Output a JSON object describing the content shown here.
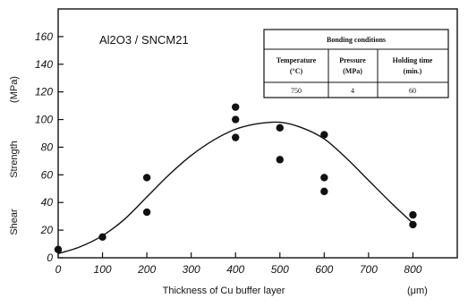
{
  "chart_data": {
    "type": "scatter",
    "xlabel": "Thickness of Cu buffer layer",
    "xunit": "(μm)",
    "ylabel_parts": [
      "Shear",
      "Strength",
      "(MPa)"
    ],
    "annotation": "Al2O3 / SNCM21",
    "xlim": [
      0,
      900
    ],
    "ylim": [
      0,
      180
    ],
    "x_ticks": [
      0,
      100,
      200,
      300,
      400,
      500,
      600,
      700,
      800
    ],
    "y_ticks": [
      0,
      20,
      40,
      60,
      80,
      100,
      120,
      140,
      160
    ],
    "grid": false,
    "series": [
      {
        "points": [
          {
            "x": 0,
            "y": 6
          },
          {
            "x": 100,
            "y": 15
          },
          {
            "x": 200,
            "y": 58
          },
          {
            "x": 200,
            "y": 33
          },
          {
            "x": 400,
            "y": 109
          },
          {
            "x": 400,
            "y": 100
          },
          {
            "x": 400,
            "y": 87
          },
          {
            "x": 500,
            "y": 94
          },
          {
            "x": 500,
            "y": 71
          },
          {
            "x": 600,
            "y": 89
          },
          {
            "x": 600,
            "y": 58
          },
          {
            "x": 600,
            "y": 48
          },
          {
            "x": 800,
            "y": 31
          },
          {
            "x": 800,
            "y": 24
          }
        ]
      }
    ],
    "fit_curve": {
      "x": [
        0,
        50,
        100,
        150,
        200,
        250,
        300,
        350,
        400,
        450,
        500,
        550,
        600,
        650,
        700,
        750,
        800
      ],
      "y": [
        3,
        8,
        16,
        28,
        44,
        60,
        74,
        85,
        93,
        97,
        98,
        94,
        86,
        72,
        56,
        40,
        25
      ]
    },
    "table": {
      "title": "Bonding conditions",
      "headers": [
        [
          "Temperature",
          "(°C)"
        ],
        [
          "Pressure",
          "(MPa)"
        ],
        [
          "Holding time",
          "(min.)"
        ]
      ],
      "values": [
        "750",
        "4",
        "60"
      ]
    }
  }
}
